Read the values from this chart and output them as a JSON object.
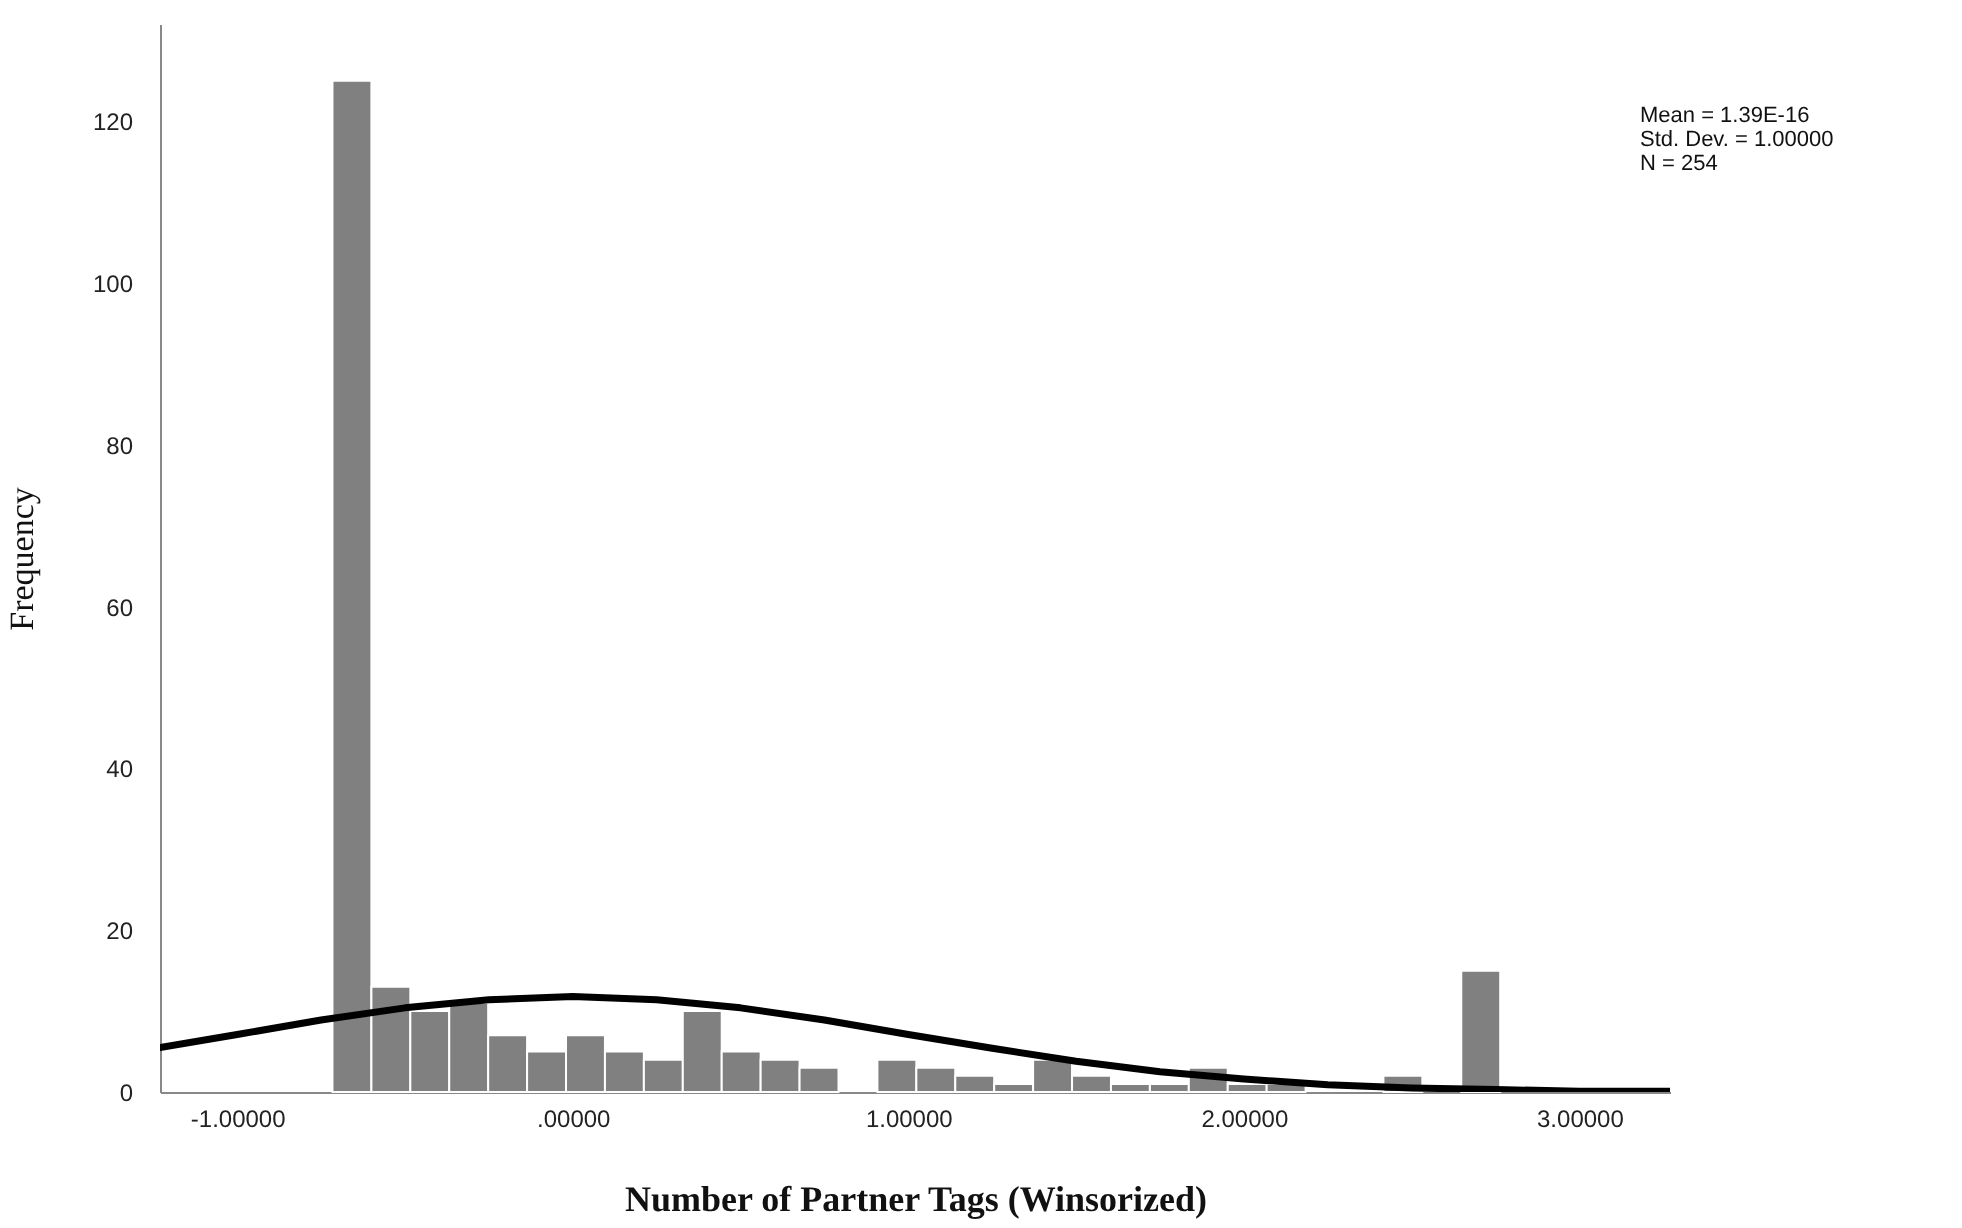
{
  "chart_data": {
    "type": "histogram",
    "xlabel": "Number of Partner Tags (Winsorized)",
    "ylabel": "Frequency",
    "annotations": [
      "Mean = 1.39E-16",
      "Std. Dev. = 1.00000",
      "N = 254"
    ],
    "bins": [
      -0.716,
      -0.6,
      -0.484,
      -0.368,
      -0.252,
      -0.136,
      -0.02,
      0.096,
      0.212,
      0.328,
      0.444,
      0.56,
      0.676,
      0.792,
      0.908,
      1.024,
      1.14,
      1.256,
      1.372,
      1.488,
      1.604,
      1.72,
      1.836,
      1.952,
      2.068,
      2.184,
      2.3,
      2.416,
      2.532,
      2.648,
      2.764
    ],
    "values": [
      125,
      13,
      10,
      11,
      7,
      5,
      7,
      5,
      4,
      10,
      5,
      4,
      3,
      0,
      4,
      3,
      2,
      1,
      4,
      2,
      1,
      1,
      3,
      1,
      1,
      0,
      0,
      2,
      0,
      15
    ],
    "color": "#808080",
    "series": [
      {
        "type": "line",
        "color": "#000000",
        "x": [
          -1.23,
          -1.0,
          -0.75,
          -0.5,
          -0.25,
          0,
          0.25,
          0.5,
          0.75,
          1.0,
          1.25,
          1.5,
          1.75,
          2.0,
          2.25,
          2.5,
          2.75,
          3.0,
          3.27
        ],
        "values": [
          5.5,
          7.1,
          8.9,
          10.4,
          11.4,
          11.8,
          11.4,
          10.4,
          8.9,
          7.1,
          5.4,
          3.8,
          2.5,
          1.6,
          0.9,
          0.5,
          0.3,
          0.1,
          0.1
        ]
      }
    ],
    "xlim": [
      -1.23,
      3.27
    ],
    "xticks": [
      {
        "value": -1,
        "label": "-1.00000"
      },
      {
        "value": 0,
        "label": ".00000"
      },
      {
        "value": 1,
        "label": "1.00000"
      },
      {
        "value": 2,
        "label": "2.00000"
      },
      {
        "value": 3,
        "label": "3.00000"
      }
    ],
    "ylim": [
      0,
      132
    ],
    "yticks": [
      0,
      20,
      40,
      60,
      80,
      100,
      120
    ],
    "grid": false
  }
}
